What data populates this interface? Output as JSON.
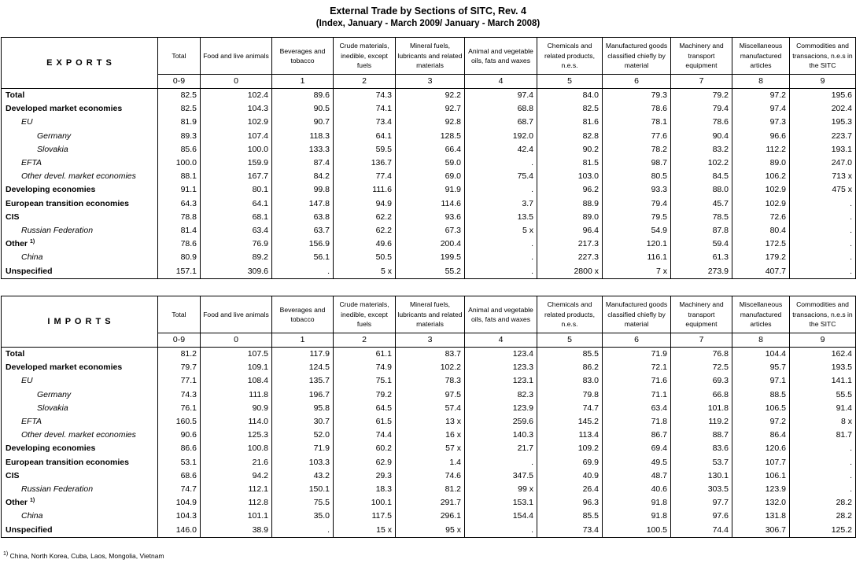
{
  "header": {
    "title": "External Trade by Sections of SITC, Rev. 4",
    "subtitle": "(Index, January - March 2009/ January - March 2008)"
  },
  "tables": [
    {
      "label": "E X P O R T S",
      "columns": [
        "Total",
        "Food and live animals",
        "Beverages and tobacco",
        "Crude materials, inedible, except fuels",
        "Mineral fuels, lubricants and related materials",
        "Animal and vegetable oils, fats and waxes",
        "Chemicals and related products, n.e.s.",
        "Manufactured goods classified chiefly by material",
        "Machinery and transport equipment",
        "Miscellaneous manufactured articles",
        "Commodities and transacions, n.e.s in the SITC"
      ],
      "codes": [
        "0-9",
        "0",
        "1",
        "2",
        "3",
        "4",
        "5",
        "6",
        "7",
        "8",
        "9"
      ],
      "rows": [
        {
          "label": "Total",
          "cells": [
            "82.5",
            "102.4",
            "89.6",
            "74.3",
            "92.2",
            "97.4",
            "84.0",
            "79.3",
            "79.2",
            "97.2",
            "195.6"
          ]
        },
        {
          "label": "Developed market economies",
          "cells": [
            "82.5",
            "104.3",
            "90.5",
            "74.1",
            "92.7",
            "68.8",
            "82.5",
            "78.6",
            "79.4",
            "97.4",
            "202.4"
          ]
        },
        {
          "label": "EU",
          "cells": [
            "81.9",
            "102.9",
            "90.7",
            "73.4",
            "92.8",
            "68.7",
            "81.6",
            "78.1",
            "78.6",
            "97.3",
            "195.3"
          ]
        },
        {
          "label": "Germany",
          "cells": [
            "89.3",
            "107.4",
            "118.3",
            "64.1",
            "128.5",
            "192.0",
            "82.8",
            "77.6",
            "90.4",
            "96.6",
            "223.7"
          ]
        },
        {
          "label": "Slovakia",
          "cells": [
            "85.6",
            "100.0",
            "133.3",
            "59.5",
            "66.4",
            "42.4",
            "90.2",
            "78.2",
            "83.2",
            "112.2",
            "193.1"
          ]
        },
        {
          "label": "EFTA",
          "cells": [
            "100.0",
            "159.9",
            "87.4",
            "136.7",
            "59.0",
            ".",
            "81.5",
            "98.7",
            "102.2",
            "89.0",
            "247.0"
          ]
        },
        {
          "label": "Other devel. market economies",
          "cells": [
            "88.1",
            "167.7",
            "84.2",
            "77.4",
            "69.0",
            "75.4",
            "103.0",
            "80.5",
            "84.5",
            "106.2",
            "713 x"
          ]
        },
        {
          "label": "Developing economies",
          "cells": [
            "91.1",
            "80.1",
            "99.8",
            "111.6",
            "91.9",
            ".",
            "96.2",
            "93.3",
            "88.0",
            "102.9",
            "475 x"
          ]
        },
        {
          "label": "European transition economies",
          "cells": [
            "64.3",
            "64.1",
            "147.8",
            "94.9",
            "114.6",
            "3.7",
            "88.9",
            "79.4",
            "45.7",
            "102.9",
            "."
          ]
        },
        {
          "label": "CIS",
          "cells": [
            "78.8",
            "68.1",
            "63.8",
            "62.2",
            "93.6",
            "13.5",
            "89.0",
            "79.5",
            "78.5",
            "72.6",
            "."
          ]
        },
        {
          "label": "Russian Federation",
          "cells": [
            "81.4",
            "63.4",
            "63.7",
            "62.2",
            "67.3",
            "5 x",
            "96.4",
            "54.9",
            "87.8",
            "80.4",
            "."
          ]
        },
        {
          "label": "Other",
          "note": "1)",
          "cells": [
            "78.6",
            "76.9",
            "156.9",
            "49.6",
            "200.4",
            ".",
            "217.3",
            "120.1",
            "59.4",
            "172.5",
            "."
          ]
        },
        {
          "label": "China",
          "cells": [
            "80.9",
            "89.2",
            "56.1",
            "50.5",
            "199.5",
            ".",
            "227.3",
            "116.1",
            "61.3",
            "179.2",
            "."
          ]
        },
        {
          "label": "Unspecified",
          "cells": [
            "157.1",
            "309.6",
            ".",
            "5 x",
            "55.2",
            ".",
            "2800 x",
            "7 x",
            "273.9",
            "407.7",
            "."
          ]
        }
      ]
    },
    {
      "label": "I M P O R T S",
      "columns": [
        "Total",
        "Food and live animals",
        "Beverages and tobacco",
        "Crude materials, inedible, except fuels",
        "Mineral fuels, lubricants and related materials",
        "Animal and vegetable oils, fats and waxes",
        "Chemicals and related products, n.e.s.",
        "Manufactured goods classified chiefly by material",
        "Machinery and transport equipment",
        "Miscellaneous manufactured articles",
        "Commodities and transacions, n.e.s in the SITC"
      ],
      "codes": [
        "0-9",
        "0",
        "1",
        "2",
        "3",
        "4",
        "5",
        "6",
        "7",
        "8",
        "9"
      ],
      "rows": [
        {
          "label": "Total",
          "cells": [
            "81.2",
            "107.5",
            "117.9",
            "61.1",
            "83.7",
            "123.4",
            "85.5",
            "71.9",
            "76.8",
            "104.4",
            "162.4"
          ]
        },
        {
          "label": "Developed market economies",
          "cells": [
            "79.7",
            "109.1",
            "124.5",
            "74.9",
            "102.2",
            "123.3",
            "86.2",
            "72.1",
            "72.5",
            "95.7",
            "193.5"
          ]
        },
        {
          "label": "EU",
          "cells": [
            "77.1",
            "108.4",
            "135.7",
            "75.1",
            "78.3",
            "123.1",
            "83.0",
            "71.6",
            "69.3",
            "97.1",
            "141.1"
          ]
        },
        {
          "label": "Germany",
          "cells": [
            "74.3",
            "111.8",
            "196.7",
            "79.2",
            "97.5",
            "82.3",
            "79.8",
            "71.1",
            "66.8",
            "88.5",
            "55.5"
          ]
        },
        {
          "label": "Slovakia",
          "cells": [
            "76.1",
            "90.9",
            "95.8",
            "64.5",
            "57.4",
            "123.9",
            "74.7",
            "63.4",
            "101.8",
            "106.5",
            "91.4"
          ]
        },
        {
          "label": "EFTA",
          "cells": [
            "160.5",
            "114.0",
            "30.7",
            "61.5",
            "13 x",
            "259.6",
            "145.2",
            "71.8",
            "119.2",
            "97.2",
            "8 x"
          ]
        },
        {
          "label": "Other devel. market economies",
          "cells": [
            "90.6",
            "125.3",
            "52.0",
            "74.4",
            "16 x",
            "140.3",
            "113.4",
            "86.7",
            "88.7",
            "86.4",
            "81.7"
          ]
        },
        {
          "label": "Developing economies",
          "cells": [
            "86.6",
            "100.8",
            "71.9",
            "60.2",
            "57 x",
            "21.7",
            "109.2",
            "69.4",
            "83.6",
            "120.6",
            "."
          ]
        },
        {
          "label": "European transition economies",
          "cells": [
            "53.1",
            "21.6",
            "103.3",
            "62.9",
            "1.4",
            ".",
            "69.9",
            "49.5",
            "53.7",
            "107.7",
            "."
          ]
        },
        {
          "label": "CIS",
          "cells": [
            "68.6",
            "94.2",
            "43.2",
            "29.3",
            "74.6",
            "347.5",
            "40.9",
            "48.7",
            "130.1",
            "106.1",
            "."
          ]
        },
        {
          "label": "Russian Federation",
          "cells": [
            "74.7",
            "112.1",
            "150.1",
            "18.3",
            "81.2",
            "99 x",
            "26.4",
            "40.6",
            "303.5",
            "123.9",
            "."
          ]
        },
        {
          "label": "Other",
          "note": "1)",
          "cells": [
            "104.9",
            "112.8",
            "75.5",
            "100.1",
            "291.7",
            "153.1",
            "96.3",
            "91.8",
            "97.7",
            "132.0",
            "28.2"
          ]
        },
        {
          "label": "China",
          "cells": [
            "104.3",
            "101.1",
            "35.0",
            "117.5",
            "296.1",
            "154.4",
            "85.5",
            "91.8",
            "97.6",
            "131.8",
            "28.2"
          ]
        },
        {
          "label": "Unspecified",
          "cells": [
            "146.0",
            "38.9",
            ".",
            "15 x",
            "95 x",
            ".",
            "73.4",
            "100.5",
            "74.4",
            "306.7",
            "125.2"
          ]
        }
      ]
    }
  ],
  "footnote": {
    "mark": "1)",
    "text": "China, North Korea, Cuba, Laos, Mongolia, Vietnam"
  }
}
